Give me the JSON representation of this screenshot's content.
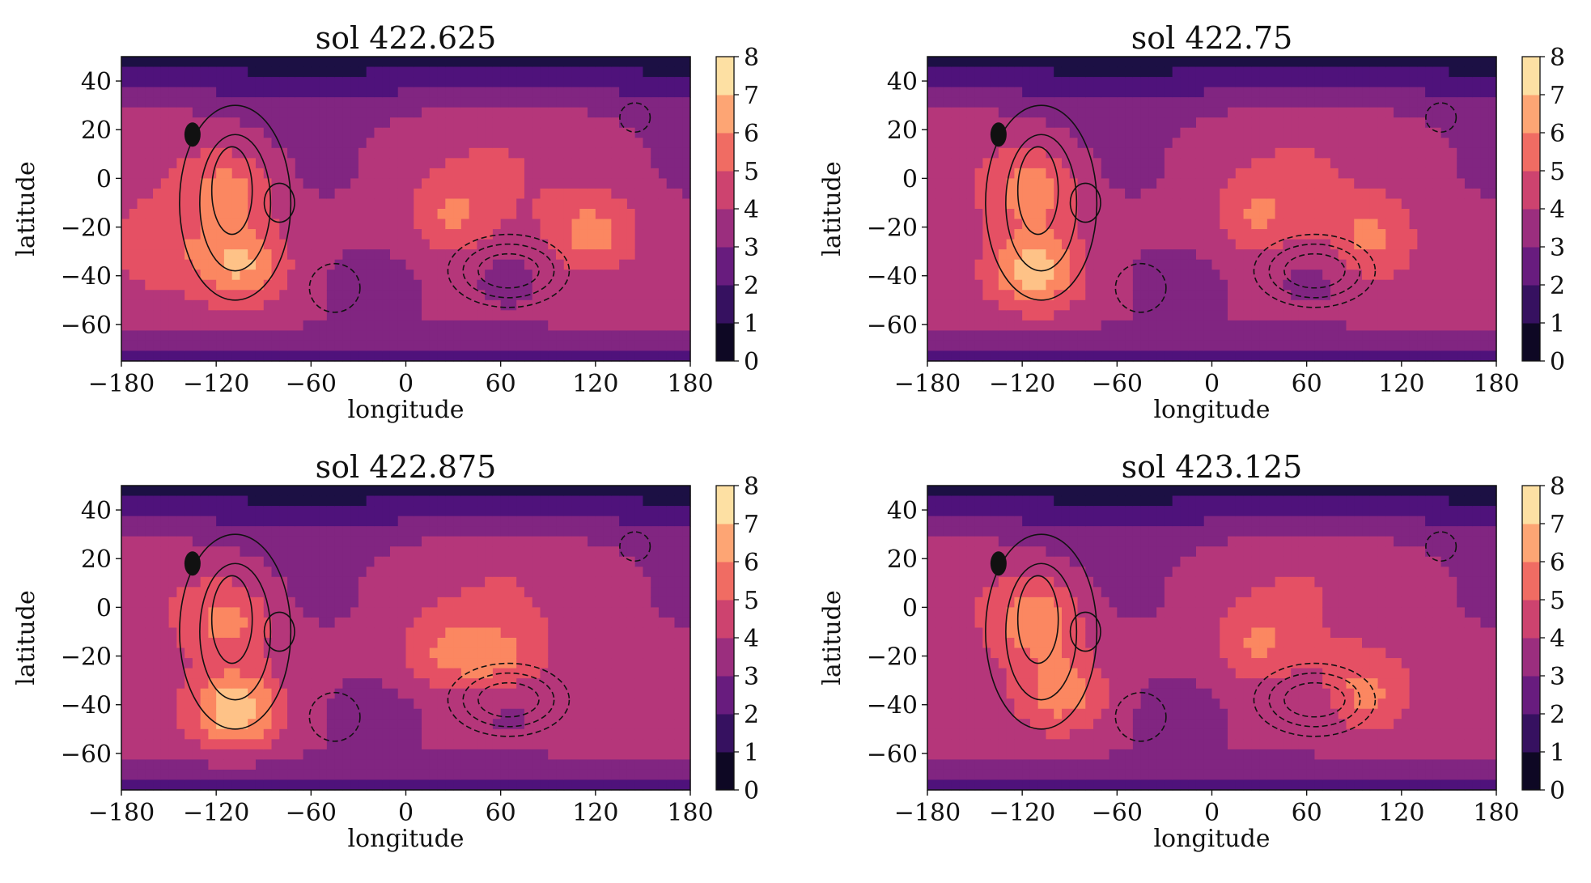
{
  "figure": {
    "colormap": [
      "#000004",
      "#1c1044",
      "#4f127b",
      "#812581",
      "#b5367a",
      "#e55064",
      "#fb8761",
      "#fec287",
      "#fcfdbf"
    ],
    "chart_data": [
      {
        "type": "heatmap",
        "title": "sol 422.625",
        "xlabel": "longitude",
        "ylabel": "latitude",
        "xlim": [
          -180,
          180
        ],
        "ylim": [
          -75,
          50
        ],
        "xticks": [
          "−180",
          "−120",
          "−60",
          "0",
          "60",
          "120",
          "180"
        ],
        "yticks": [
          "40",
          "20",
          "0",
          "−20",
          "−40",
          "−60"
        ],
        "colorbar": {
          "range": [
            0,
            8
          ],
          "ticks": [
            "0",
            "1",
            "2",
            "3",
            "4",
            "5",
            "6",
            "7",
            "8"
          ]
        },
        "peak_value": 7.0,
        "hotspots": [
          {
            "lon": -105,
            "lat": -35,
            "value": 7.0
          },
          {
            "lon": -112,
            "lat": -5,
            "value": 6.4
          },
          {
            "lon": 118,
            "lat": -22,
            "value": 6.2
          },
          {
            "lon": 30,
            "lat": -15,
            "value": 5.8
          },
          {
            "lon": -155,
            "lat": -30,
            "value": 5.5
          }
        ]
      },
      {
        "type": "heatmap",
        "title": "sol 422.75",
        "xlabel": "longitude",
        "ylabel": "latitude",
        "xlim": [
          -180,
          180
        ],
        "ylim": [
          -75,
          50
        ],
        "xticks": [
          "−180",
          "−120",
          "−60",
          "0",
          "60",
          "120",
          "180"
        ],
        "yticks": [
          "40",
          "20",
          "0",
          "−20",
          "−40",
          "−60"
        ],
        "colorbar": {
          "range": [
            0,
            8
          ],
          "ticks": [
            "0",
            "1",
            "2",
            "3",
            "4",
            "5",
            "6",
            "7",
            "8"
          ]
        },
        "peak_value": 7.3,
        "hotspots": [
          {
            "lon": -112,
            "lat": -38,
            "value": 7.3
          },
          {
            "lon": -112,
            "lat": -5,
            "value": 6.5
          },
          {
            "lon": 100,
            "lat": -25,
            "value": 6.0
          },
          {
            "lon": 30,
            "lat": -15,
            "value": 5.8
          }
        ]
      },
      {
        "type": "heatmap",
        "title": "sol 422.875",
        "xlabel": "longitude",
        "ylabel": "latitude",
        "xlim": [
          -180,
          180
        ],
        "ylim": [
          -75,
          50
        ],
        "xticks": [
          "−180",
          "−120",
          "−60",
          "0",
          "60",
          "120",
          "180"
        ],
        "yticks": [
          "40",
          "20",
          "0",
          "−20",
          "−40",
          "−60"
        ],
        "colorbar": {
          "range": [
            0,
            8
          ],
          "ticks": [
            "0",
            "1",
            "2",
            "3",
            "4",
            "5",
            "6",
            "7",
            "8"
          ]
        },
        "peak_value": 7.6,
        "hotspots": [
          {
            "lon": -108,
            "lat": -42,
            "value": 7.6
          },
          {
            "lon": -112,
            "lat": -5,
            "value": 6.3
          },
          {
            "lon": 60,
            "lat": -22,
            "value": 5.8
          },
          {
            "lon": 25,
            "lat": -18,
            "value": 5.7
          }
        ]
      },
      {
        "type": "heatmap",
        "title": "sol 423.125",
        "xlabel": "longitude",
        "ylabel": "latitude",
        "xlim": [
          -180,
          180
        ],
        "ylim": [
          -75,
          50
        ],
        "xticks": [
          "−180",
          "−120",
          "−60",
          "0",
          "60",
          "120",
          "180"
        ],
        "yticks": [
          "40",
          "20",
          "0",
          "−20",
          "−40",
          "−60"
        ],
        "colorbar": {
          "range": [
            0,
            8
          ],
          "ticks": [
            "0",
            "1",
            "2",
            "3",
            "4",
            "5",
            "6",
            "7",
            "8"
          ]
        },
        "peak_value": 6.8,
        "hotspots": [
          {
            "lon": -110,
            "lat": -5,
            "value": 6.8
          },
          {
            "lon": -95,
            "lat": -35,
            "value": 6.4
          },
          {
            "lon": 95,
            "lat": -35,
            "value": 6.2
          },
          {
            "lon": 30,
            "lat": -15,
            "value": 5.8
          }
        ]
      }
    ]
  }
}
